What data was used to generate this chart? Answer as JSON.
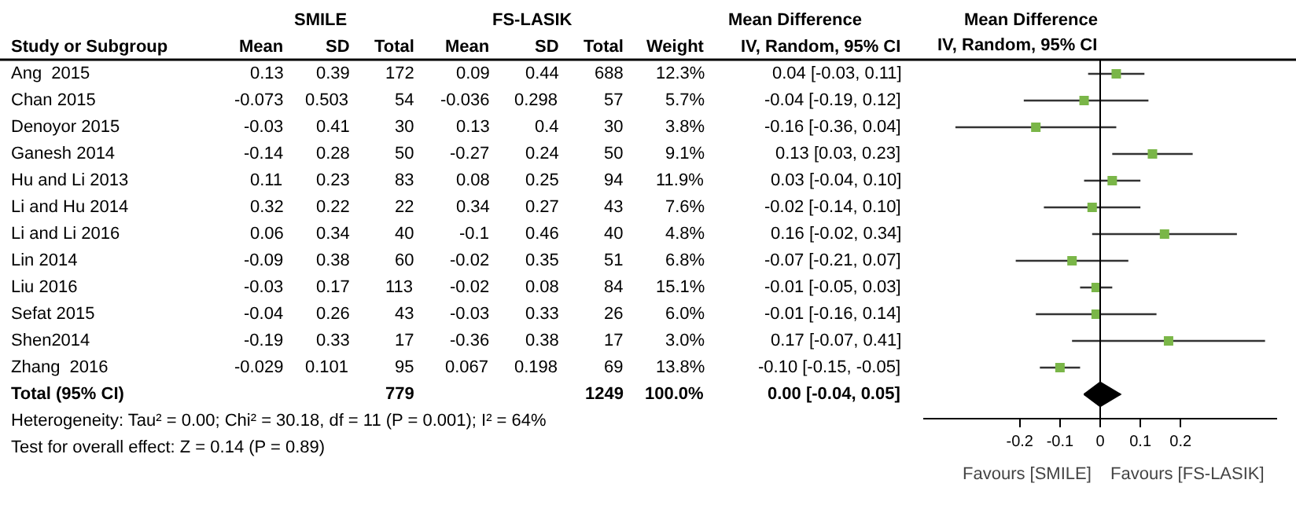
{
  "chart_data": [
    {
      "type": "other",
      "categories": [
        "Study or Subgroup",
        "Mean",
        "SD",
        "Total",
        "Mean",
        "SD",
        "Total",
        "Weight",
        "IV, Random, 95% CI"
      ],
      "y_categories": [
        "Ang  2015",
        "Chan 2015",
        "Denoyor 2015",
        "Ganesh 2014",
        "Hu and Li 2013",
        "Li and Hu 2014",
        "Li and Li 2016",
        "Lin 2014",
        "Liu 2016",
        "Sefat 2015",
        "Shen2014",
        "Zhang  2016",
        "Total (95% CI)"
      ],
      "cell_labels": [
        [
          "0.13",
          "0.39",
          "172",
          "0.09",
          "0.44",
          "688",
          "12.3%",
          "0.04 [-0.03, 0.11]"
        ],
        [
          "-0.073",
          "0.503",
          "54",
          "-0.036",
          "0.298",
          "57",
          "5.7%",
          "-0.04 [-0.19, 0.12]"
        ],
        [
          "-0.03",
          "0.41",
          "30",
          "0.13",
          "0.4",
          "30",
          "3.8%",
          "-0.16 [-0.36, 0.04]"
        ],
        [
          "-0.14",
          "0.28",
          "50",
          "-0.27",
          "0.24",
          "50",
          "9.1%",
          "0.13 [0.03, 0.23]"
        ],
        [
          "0.11",
          "0.23",
          "83",
          "0.08",
          "0.25",
          "94",
          "11.9%",
          "0.03 [-0.04, 0.10]"
        ],
        [
          "0.32",
          "0.22",
          "22",
          "0.34",
          "0.27",
          "43",
          "7.6%",
          "-0.02 [-0.14, 0.10]"
        ],
        [
          "0.06",
          "0.34",
          "40",
          "-0.1",
          "0.46",
          "40",
          "4.8%",
          "0.16 [-0.02, 0.34]"
        ],
        [
          "-0.09",
          "0.38",
          "60",
          "-0.02",
          "0.35",
          "51",
          "6.8%",
          "-0.07 [-0.21, 0.07]"
        ],
        [
          "-0.03",
          "0.17",
          "113",
          "-0.02",
          "0.08",
          "84",
          "15.1%",
          "-0.01 [-0.05, 0.03]"
        ],
        [
          "-0.04",
          "0.26",
          "43",
          "-0.03",
          "0.33",
          "26",
          "6.0%",
          "-0.01 [-0.16, 0.14]"
        ],
        [
          "-0.19",
          "0.33",
          "17",
          "-0.36",
          "0.38",
          "17",
          "3.0%",
          "0.17 [-0.07, 0.41]"
        ],
        [
          "-0.029",
          "0.101",
          "95",
          "0.067",
          "0.198",
          "69",
          "13.8%",
          "-0.10 [-0.15, -0.05]"
        ],
        [
          null,
          null,
          "779",
          null,
          null,
          "1249",
          "100.0%",
          "0.00 [-0.04, 0.05]"
        ]
      ],
      "annotations": [
        "SMILE",
        "FS-LASIK",
        "Mean Difference",
        "Heterogeneity: Tau² = 0.00; Chi² = 30.18, df = 11 (P = 0.001); I² = 64%",
        "Test for overall effect: Z = 0.14 (P = 0.89)"
      ]
    },
    {
      "type": "scatter",
      "orientation": "horizontal",
      "title": "Mean Difference",
      "subtitle": "IV, Random, 95% CI",
      "categories": [
        null,
        null,
        null,
        null,
        null,
        null,
        null,
        null,
        null,
        null,
        null,
        null,
        null
      ],
      "series": [
        {
          "color": "#7ab648",
          "marker": "square",
          "values": [
            0.04,
            -0.04,
            -0.16,
            0.13,
            0.03,
            -0.02,
            0.16,
            -0.07,
            -0.01,
            -0.01,
            0.17,
            -0.1,
            null
          ],
          "errors": [
            [
              -0.03,
              0.11
            ],
            [
              -0.19,
              0.12
            ],
            [
              -0.36,
              0.04
            ],
            [
              0.03,
              0.23
            ],
            [
              -0.04,
              0.1
            ],
            [
              -0.14,
              0.1
            ],
            [
              -0.02,
              0.34
            ],
            [
              -0.21,
              0.07
            ],
            [
              -0.05,
              0.03
            ],
            [
              -0.16,
              0.14
            ],
            [
              -0.07,
              0.41
            ],
            [
              -0.15,
              -0.05
            ],
            null
          ]
        },
        {
          "color": "#000000",
          "marker": "diamond",
          "values": [
            null,
            null,
            null,
            null,
            null,
            null,
            null,
            null,
            null,
            null,
            null,
            null,
            0.0
          ],
          "errors": [
            null,
            null,
            null,
            null,
            null,
            null,
            null,
            null,
            null,
            null,
            null,
            null,
            [
              -0.04,
              0.05
            ]
          ]
        }
      ],
      "xlim": [
        -0.44,
        0.44
      ],
      "xticks": [
        -0.2,
        -0.1,
        0,
        0.1,
        0.2
      ],
      "ref_lines": [
        {
          "axis": "x",
          "value": 0,
          "color": "#000000"
        }
      ],
      "annotations": [
        "Favours [SMILE]",
        "Favours [FS-LASIK]"
      ]
    }
  ]
}
